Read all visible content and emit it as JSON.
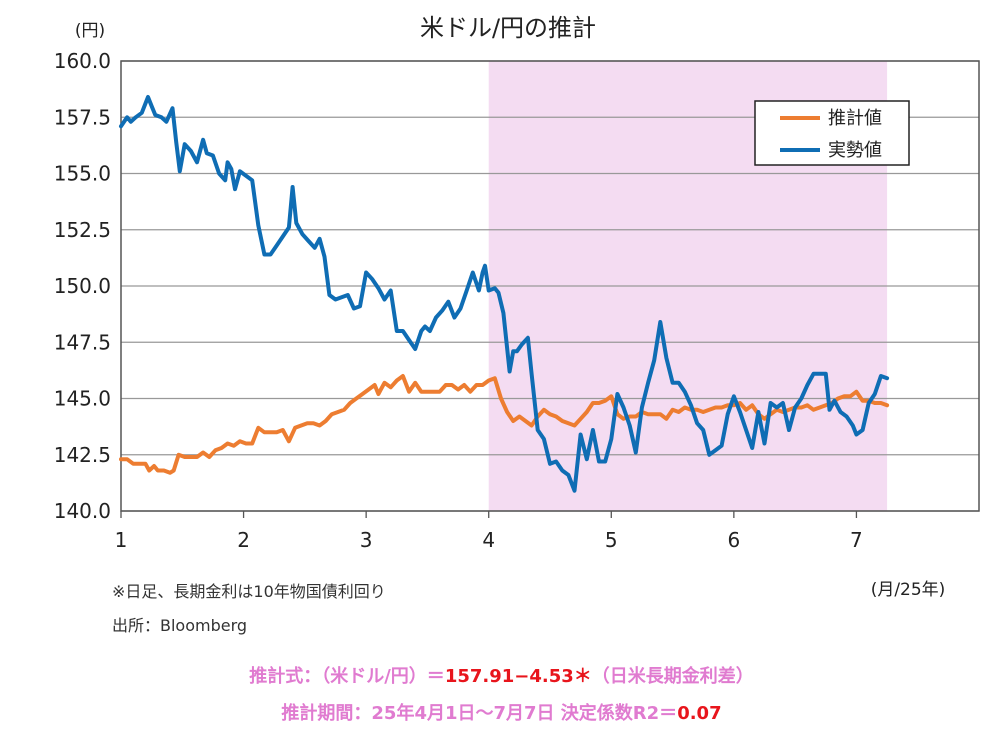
{
  "chart_data": {
    "type": "line",
    "title": "米ドル/円の推計",
    "y_unit_label": "(円)",
    "x_unit_label": "(月/25年)",
    "ylim": [
      140.0,
      160.0
    ],
    "y_ticks": [
      "140.0",
      "142.5",
      "145.0",
      "147.5",
      "150.0",
      "152.5",
      "155.0",
      "157.5",
      "160.0"
    ],
    "xlim": [
      1,
      8
    ],
    "x_ticks": [
      "1",
      "2",
      "3",
      "4",
      "5",
      "6",
      "7"
    ],
    "grid": true,
    "legend_position": "top-right",
    "shaded_period": {
      "from": 4.0,
      "to": 7.25,
      "color": "#f4dcf2"
    },
    "series": [
      {
        "name": "推計値",
        "color": "#ed7d31",
        "points": [
          [
            1.0,
            142.3
          ],
          [
            1.05,
            142.3
          ],
          [
            1.1,
            142.1
          ],
          [
            1.15,
            142.1
          ],
          [
            1.2,
            142.1
          ],
          [
            1.23,
            141.8
          ],
          [
            1.27,
            142.0
          ],
          [
            1.3,
            141.8
          ],
          [
            1.35,
            141.8
          ],
          [
            1.4,
            141.7
          ],
          [
            1.43,
            141.8
          ],
          [
            1.47,
            142.5
          ],
          [
            1.52,
            142.4
          ],
          [
            1.57,
            142.4
          ],
          [
            1.62,
            142.4
          ],
          [
            1.67,
            142.6
          ],
          [
            1.72,
            142.4
          ],
          [
            1.77,
            142.7
          ],
          [
            1.82,
            142.8
          ],
          [
            1.87,
            143.0
          ],
          [
            1.92,
            142.9
          ],
          [
            1.97,
            143.1
          ],
          [
            2.02,
            143.0
          ],
          [
            2.07,
            143.0
          ],
          [
            2.12,
            143.7
          ],
          [
            2.17,
            143.5
          ],
          [
            2.22,
            143.5
          ],
          [
            2.27,
            143.5
          ],
          [
            2.32,
            143.6
          ],
          [
            2.37,
            143.1
          ],
          [
            2.42,
            143.7
          ],
          [
            2.47,
            143.8
          ],
          [
            2.52,
            143.9
          ],
          [
            2.57,
            143.9
          ],
          [
            2.62,
            143.8
          ],
          [
            2.67,
            144.0
          ],
          [
            2.72,
            144.3
          ],
          [
            2.77,
            144.4
          ],
          [
            2.82,
            144.5
          ],
          [
            2.87,
            144.8
          ],
          [
            2.92,
            145.0
          ],
          [
            2.97,
            145.2
          ],
          [
            3.02,
            145.4
          ],
          [
            3.07,
            145.6
          ],
          [
            3.1,
            145.2
          ],
          [
            3.15,
            145.7
          ],
          [
            3.2,
            145.5
          ],
          [
            3.25,
            145.8
          ],
          [
            3.3,
            146.0
          ],
          [
            3.35,
            145.3
          ],
          [
            3.4,
            145.7
          ],
          [
            3.45,
            145.3
          ],
          [
            3.5,
            145.3
          ],
          [
            3.55,
            145.3
          ],
          [
            3.6,
            145.3
          ],
          [
            3.65,
            145.6
          ],
          [
            3.7,
            145.6
          ],
          [
            3.75,
            145.4
          ],
          [
            3.8,
            145.6
          ],
          [
            3.85,
            145.3
          ],
          [
            3.9,
            145.6
          ],
          [
            3.95,
            145.6
          ],
          [
            4.0,
            145.8
          ],
          [
            4.05,
            145.9
          ],
          [
            4.1,
            145.0
          ],
          [
            4.15,
            144.4
          ],
          [
            4.2,
            144.0
          ],
          [
            4.25,
            144.2
          ],
          [
            4.3,
            144.0
          ],
          [
            4.35,
            143.8
          ],
          [
            4.4,
            144.2
          ],
          [
            4.45,
            144.5
          ],
          [
            4.5,
            144.3
          ],
          [
            4.55,
            144.2
          ],
          [
            4.6,
            144.0
          ],
          [
            4.65,
            143.9
          ],
          [
            4.7,
            143.8
          ],
          [
            4.75,
            144.1
          ],
          [
            4.8,
            144.4
          ],
          [
            4.85,
            144.8
          ],
          [
            4.9,
            144.8
          ],
          [
            4.95,
            144.9
          ],
          [
            5.0,
            145.1
          ],
          [
            5.05,
            144.3
          ],
          [
            5.1,
            144.1
          ],
          [
            5.15,
            144.2
          ],
          [
            5.2,
            144.2
          ],
          [
            5.25,
            144.4
          ],
          [
            5.3,
            144.3
          ],
          [
            5.35,
            144.3
          ],
          [
            5.4,
            144.3
          ],
          [
            5.45,
            144.1
          ],
          [
            5.5,
            144.5
          ],
          [
            5.55,
            144.4
          ],
          [
            5.6,
            144.6
          ],
          [
            5.65,
            144.5
          ],
          [
            5.7,
            144.5
          ],
          [
            5.75,
            144.4
          ],
          [
            5.8,
            144.5
          ],
          [
            5.85,
            144.6
          ],
          [
            5.9,
            144.6
          ],
          [
            5.95,
            144.7
          ],
          [
            6.0,
            144.7
          ],
          [
            6.05,
            144.8
          ],
          [
            6.1,
            144.5
          ],
          [
            6.15,
            144.7
          ],
          [
            6.2,
            144.3
          ],
          [
            6.25,
            144.1
          ],
          [
            6.3,
            144.3
          ],
          [
            6.35,
            144.5
          ],
          [
            6.4,
            144.4
          ],
          [
            6.45,
            144.5
          ],
          [
            6.5,
            144.6
          ],
          [
            6.55,
            144.6
          ],
          [
            6.6,
            144.7
          ],
          [
            6.65,
            144.5
          ],
          [
            6.7,
            144.6
          ],
          [
            6.75,
            144.7
          ],
          [
            6.8,
            144.8
          ],
          [
            6.85,
            145.0
          ],
          [
            6.9,
            145.1
          ],
          [
            6.95,
            145.1
          ],
          [
            7.0,
            145.3
          ],
          [
            7.05,
            144.9
          ],
          [
            7.1,
            144.9
          ],
          [
            7.15,
            144.8
          ],
          [
            7.2,
            144.8
          ],
          [
            7.25,
            144.7
          ]
        ]
      },
      {
        "name": "実勢値",
        "color": "#0f6db4",
        "points": [
          [
            1.0,
            157.1
          ],
          [
            1.05,
            157.5
          ],
          [
            1.08,
            157.3
          ],
          [
            1.12,
            157.5
          ],
          [
            1.17,
            157.7
          ],
          [
            1.22,
            158.4
          ],
          [
            1.25,
            158.0
          ],
          [
            1.28,
            157.6
          ],
          [
            1.33,
            157.5
          ],
          [
            1.37,
            157.3
          ],
          [
            1.42,
            157.9
          ],
          [
            1.45,
            156.4
          ],
          [
            1.48,
            155.1
          ],
          [
            1.52,
            156.3
          ],
          [
            1.57,
            156.0
          ],
          [
            1.62,
            155.5
          ],
          [
            1.67,
            156.5
          ],
          [
            1.7,
            155.9
          ],
          [
            1.75,
            155.8
          ],
          [
            1.8,
            155.0
          ],
          [
            1.85,
            154.7
          ],
          [
            1.87,
            155.5
          ],
          [
            1.9,
            155.2
          ],
          [
            1.93,
            154.3
          ],
          [
            1.97,
            155.1
          ],
          [
            2.02,
            154.9
          ],
          [
            2.07,
            154.7
          ],
          [
            2.12,
            152.7
          ],
          [
            2.17,
            151.4
          ],
          [
            2.22,
            151.4
          ],
          [
            2.27,
            151.8
          ],
          [
            2.32,
            152.2
          ],
          [
            2.37,
            152.6
          ],
          [
            2.4,
            154.4
          ],
          [
            2.43,
            152.8
          ],
          [
            2.48,
            152.3
          ],
          [
            2.53,
            152.0
          ],
          [
            2.58,
            151.7
          ],
          [
            2.62,
            152.1
          ],
          [
            2.66,
            151.3
          ],
          [
            2.7,
            149.6
          ],
          [
            2.75,
            149.4
          ],
          [
            2.8,
            149.5
          ],
          [
            2.85,
            149.6
          ],
          [
            2.9,
            149.0
          ],
          [
            2.95,
            149.1
          ],
          [
            3.0,
            150.6
          ],
          [
            3.05,
            150.3
          ],
          [
            3.1,
            149.9
          ],
          [
            3.15,
            149.4
          ],
          [
            3.2,
            149.8
          ],
          [
            3.25,
            148.0
          ],
          [
            3.3,
            148.0
          ],
          [
            3.35,
            147.6
          ],
          [
            3.4,
            147.2
          ],
          [
            3.45,
            148.0
          ],
          [
            3.48,
            148.2
          ],
          [
            3.52,
            148.0
          ],
          [
            3.57,
            148.6
          ],
          [
            3.62,
            148.9
          ],
          [
            3.67,
            149.3
          ],
          [
            3.72,
            148.6
          ],
          [
            3.77,
            149.0
          ],
          [
            3.82,
            149.8
          ],
          [
            3.87,
            150.6
          ],
          [
            3.92,
            149.8
          ],
          [
            3.95,
            150.6
          ],
          [
            3.97,
            150.9
          ],
          [
            4.0,
            149.8
          ],
          [
            4.05,
            149.9
          ],
          [
            4.08,
            149.7
          ],
          [
            4.12,
            148.8
          ],
          [
            4.17,
            146.2
          ],
          [
            4.2,
            147.1
          ],
          [
            4.23,
            147.1
          ],
          [
            4.27,
            147.4
          ],
          [
            4.32,
            147.7
          ],
          [
            4.35,
            146.1
          ],
          [
            4.4,
            143.6
          ],
          [
            4.45,
            143.2
          ],
          [
            4.5,
            142.1
          ],
          [
            4.55,
            142.2
          ],
          [
            4.6,
            141.8
          ],
          [
            4.65,
            141.6
          ],
          [
            4.7,
            140.9
          ],
          [
            4.75,
            143.4
          ],
          [
            4.8,
            142.3
          ],
          [
            4.85,
            143.6
          ],
          [
            4.9,
            142.2
          ],
          [
            4.95,
            142.2
          ],
          [
            5.0,
            143.2
          ],
          [
            5.05,
            145.2
          ],
          [
            5.1,
            144.6
          ],
          [
            5.15,
            143.8
          ],
          [
            5.2,
            142.6
          ],
          [
            5.25,
            144.6
          ],
          [
            5.3,
            145.7
          ],
          [
            5.35,
            146.7
          ],
          [
            5.4,
            148.4
          ],
          [
            5.45,
            146.8
          ],
          [
            5.5,
            145.7
          ],
          [
            5.55,
            145.7
          ],
          [
            5.6,
            145.3
          ],
          [
            5.65,
            144.7
          ],
          [
            5.7,
            143.9
          ],
          [
            5.75,
            143.6
          ],
          [
            5.8,
            142.5
          ],
          [
            5.85,
            142.7
          ],
          [
            5.9,
            142.9
          ],
          [
            5.95,
            144.3
          ],
          [
            6.0,
            145.1
          ],
          [
            6.05,
            144.4
          ],
          [
            6.1,
            143.6
          ],
          [
            6.15,
            142.8
          ],
          [
            6.2,
            144.4
          ],
          [
            6.25,
            143.0
          ],
          [
            6.3,
            144.8
          ],
          [
            6.35,
            144.6
          ],
          [
            6.4,
            144.8
          ],
          [
            6.45,
            143.6
          ],
          [
            6.5,
            144.6
          ],
          [
            6.55,
            145.0
          ],
          [
            6.6,
            145.6
          ],
          [
            6.65,
            146.1
          ],
          [
            6.7,
            146.1
          ],
          [
            6.75,
            146.1
          ],
          [
            6.78,
            144.5
          ],
          [
            6.82,
            144.9
          ],
          [
            6.87,
            144.4
          ],
          [
            6.92,
            144.2
          ],
          [
            6.97,
            143.8
          ],
          [
            7.0,
            143.4
          ],
          [
            7.05,
            143.6
          ],
          [
            7.1,
            144.8
          ],
          [
            7.15,
            145.2
          ],
          [
            7.2,
            146.0
          ],
          [
            7.25,
            145.9
          ]
        ]
      }
    ]
  },
  "notes": {
    "source_note": "※日足、長期金利は10年物国債利回り",
    "source": "出所：Bloomberg"
  },
  "formula": {
    "line1_label": "推計式：（米ドル/円）＝",
    "line1_value": "157.91−4.53＊",
    "line1_tail": "（日米長期金利差）",
    "line2_label": "推計期間：25年4月1日～7月7日  決定係数R2＝",
    "line2_value": "0.07"
  }
}
